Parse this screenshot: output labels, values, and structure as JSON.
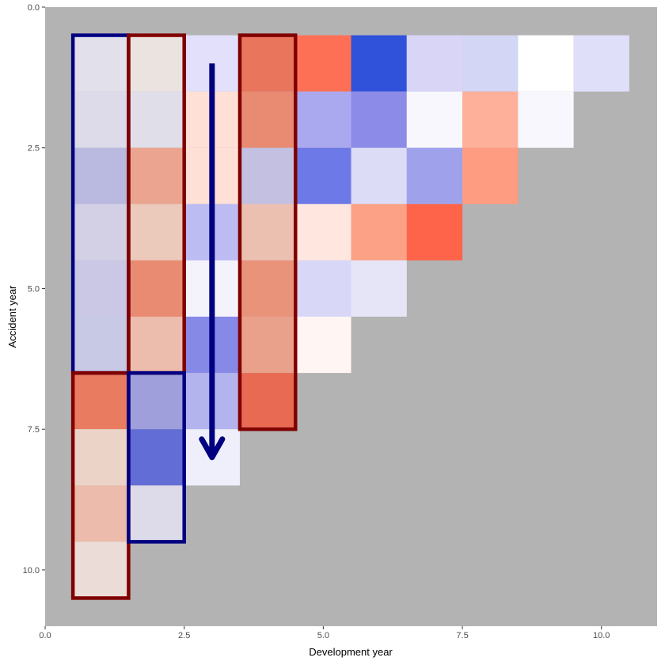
{
  "chart_data": {
    "type": "heatmap",
    "xlabel": "Development year",
    "ylabel": "Accident year",
    "xlim": [
      0,
      11
    ],
    "ylim": [
      0,
      11
    ],
    "y_reversed": true,
    "x_ticks": [
      "0.0",
      "2.5",
      "5.0",
      "7.5",
      "10.0"
    ],
    "y_ticks": [
      "0.0",
      "2.5",
      "5.0",
      "7.5",
      "10.0"
    ],
    "panel_background": "#b3b3b3",
    "cells": [
      {
        "dev": 1,
        "acc": 1,
        "color": "#e2e0eb"
      },
      {
        "dev": 2,
        "acc": 1,
        "color": "#ebe3e0"
      },
      {
        "dev": 3,
        "acc": 1,
        "color": "#e2e0fb"
      },
      {
        "dev": 4,
        "acc": 1,
        "color": "#e8755c"
      },
      {
        "dev": 5,
        "acc": 1,
        "color": "#fe7055"
      },
      {
        "dev": 6,
        "acc": 1,
        "color": "#3052db"
      },
      {
        "dev": 7,
        "acc": 1,
        "color": "#d8d5f7"
      },
      {
        "dev": 8,
        "acc": 1,
        "color": "#d3d6f5"
      },
      {
        "dev": 9,
        "acc": 1,
        "color": "#ffffff"
      },
      {
        "dev": 10,
        "acc": 1,
        "color": "#e0dffa"
      },
      {
        "dev": 1,
        "acc": 2,
        "color": "#dddbe9"
      },
      {
        "dev": 2,
        "acc": 2,
        "color": "#e0dee9"
      },
      {
        "dev": 3,
        "acc": 2,
        "color": "#ffe0d6"
      },
      {
        "dev": 4,
        "acc": 2,
        "color": "#e98a72"
      },
      {
        "dev": 5,
        "acc": 2,
        "color": "#aaa9f0"
      },
      {
        "dev": 6,
        "acc": 2,
        "color": "#8c8ce8"
      },
      {
        "dev": 7,
        "acc": 2,
        "color": "#f8f7fd"
      },
      {
        "dev": 8,
        "acc": 2,
        "color": "#feb09b"
      },
      {
        "dev": 9,
        "acc": 2,
        "color": "#f7f7fd"
      },
      {
        "dev": 1,
        "acc": 3,
        "color": "#bab9e0"
      },
      {
        "dev": 2,
        "acc": 3,
        "color": "#eaa48f"
      },
      {
        "dev": 3,
        "acc": 3,
        "color": "#ffe0d6"
      },
      {
        "dev": 4,
        "acc": 3,
        "color": "#c3c0e2"
      },
      {
        "dev": 5,
        "acc": 3,
        "color": "#6e79e8"
      },
      {
        "dev": 6,
        "acc": 3,
        "color": "#dddcf6"
      },
      {
        "dev": 7,
        "acc": 3,
        "color": "#9fa2ea"
      },
      {
        "dev": 8,
        "acc": 3,
        "color": "#fd9c81"
      },
      {
        "dev": 1,
        "acc": 4,
        "color": "#d3d0e6"
      },
      {
        "dev": 2,
        "acc": 4,
        "color": "#ebc9bb"
      },
      {
        "dev": 3,
        "acc": 4,
        "color": "#bcbcf3"
      },
      {
        "dev": 4,
        "acc": 4,
        "color": "#ebc0b0"
      },
      {
        "dev": 5,
        "acc": 4,
        "color": "#ffe6de"
      },
      {
        "dev": 6,
        "acc": 4,
        "color": "#fca086"
      },
      {
        "dev": 7,
        "acc": 4,
        "color": "#fe644a"
      },
      {
        "dev": 1,
        "acc": 5,
        "color": "#cac8e5"
      },
      {
        "dev": 2,
        "acc": 5,
        "color": "#e98b72"
      },
      {
        "dev": 3,
        "acc": 5,
        "color": "#f4f3fc"
      },
      {
        "dev": 4,
        "acc": 5,
        "color": "#e9937b"
      },
      {
        "dev": 5,
        "acc": 5,
        "color": "#d9d7f8"
      },
      {
        "dev": 6,
        "acc": 5,
        "color": "#e6e5f8"
      },
      {
        "dev": 1,
        "acc": 6,
        "color": "#c8c9e5"
      },
      {
        "dev": 2,
        "acc": 6,
        "color": "#ecbcad"
      },
      {
        "dev": 3,
        "acc": 6,
        "color": "#8689e6"
      },
      {
        "dev": 4,
        "acc": 6,
        "color": "#e9a18b"
      },
      {
        "dev": 5,
        "acc": 6,
        "color": "#fff5f2"
      },
      {
        "dev": 1,
        "acc": 7,
        "color": "#e97b60"
      },
      {
        "dev": 2,
        "acc": 7,
        "color": "#9f9fdb"
      },
      {
        "dev": 3,
        "acc": 7,
        "color": "#b3b3ee"
      },
      {
        "dev": 4,
        "acc": 7,
        "color": "#e86a53"
      },
      {
        "dev": 1,
        "acc": 8,
        "color": "#ecd3c8"
      },
      {
        "dev": 2,
        "acc": 8,
        "color": "#626dd5"
      },
      {
        "dev": 3,
        "acc": 8,
        "color": "#efeffc"
      },
      {
        "dev": 1,
        "acc": 9,
        "color": "#ecbbab"
      },
      {
        "dev": 2,
        "acc": 9,
        "color": "#dddbe9"
      },
      {
        "dev": 1,
        "acc": 10,
        "color": "#ecdcd8"
      }
    ],
    "highlight_boxes": [
      {
        "x0": 0.5,
        "x1": 1.5,
        "y0": 0.5,
        "y1": 6.5,
        "color": "#000080"
      },
      {
        "x0": 1.5,
        "x1": 2.5,
        "y0": 0.5,
        "y1": 6.5,
        "color": "#800000"
      },
      {
        "x0": 3.5,
        "x1": 4.5,
        "y0": 0.5,
        "y1": 7.5,
        "color": "#800000"
      },
      {
        "x0": 0.5,
        "x1": 1.5,
        "y0": 6.5,
        "y1": 10.5,
        "color": "#800000"
      },
      {
        "x0": 1.5,
        "x1": 2.5,
        "y0": 6.5,
        "y1": 9.5,
        "color": "#000080"
      }
    ],
    "arrow": {
      "x": 3,
      "y_start": 1,
      "y_end": 8,
      "color": "#000080"
    }
  }
}
